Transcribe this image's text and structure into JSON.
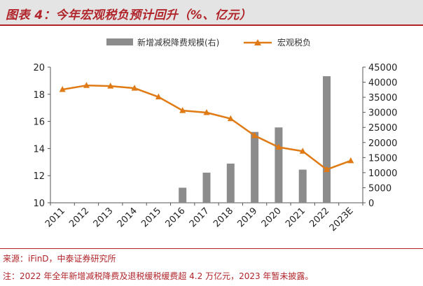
{
  "header": {
    "title": "图表 4：今年宏观税负预计回升（%、亿元）"
  },
  "footer": {
    "source": "来源：iFinD，中泰证券研究所",
    "note": "注：2022 年全年新增减税降费及退税缓税缓费超 4.2 万亿元，2023 年暂未披露。"
  },
  "colors": {
    "bar": "#8c8c8c",
    "line": "#e07a14",
    "accent": "#b0242a"
  },
  "chart_data": {
    "type": "bar+line",
    "title": "今年宏观税负预计回升（%、亿元）",
    "categories": [
      "2011",
      "2012",
      "2013",
      "2014",
      "2015",
      "2016",
      "2017",
      "2018",
      "2019",
      "2020",
      "2021",
      "2022",
      "2023E"
    ],
    "series": [
      {
        "name": "新增减税降费规模(右)",
        "type": "bar",
        "axis": "right",
        "values": [
          null,
          null,
          null,
          null,
          null,
          5000,
          10000,
          13000,
          23500,
          25000,
          11000,
          42000,
          null
        ]
      },
      {
        "name": "宏观税负",
        "type": "line",
        "marker": "triangle",
        "axis": "left",
        "values": [
          18.35,
          18.65,
          18.6,
          18.45,
          17.8,
          16.8,
          16.65,
          16.2,
          14.95,
          14.1,
          13.8,
          12.45,
          13.1
        ]
      }
    ],
    "y_left": {
      "min": 10,
      "max": 20,
      "step": 2,
      "ticks": [
        "10",
        "12",
        "14",
        "16",
        "18",
        "20"
      ]
    },
    "y_right": {
      "min": 0,
      "max": 45000,
      "step": 5000,
      "ticks": [
        "0",
        "5000",
        "10000",
        "15000",
        "20000",
        "25000",
        "30000",
        "35000",
        "40000",
        "45000"
      ]
    },
    "legend": {
      "position": "top"
    },
    "grid": false
  }
}
